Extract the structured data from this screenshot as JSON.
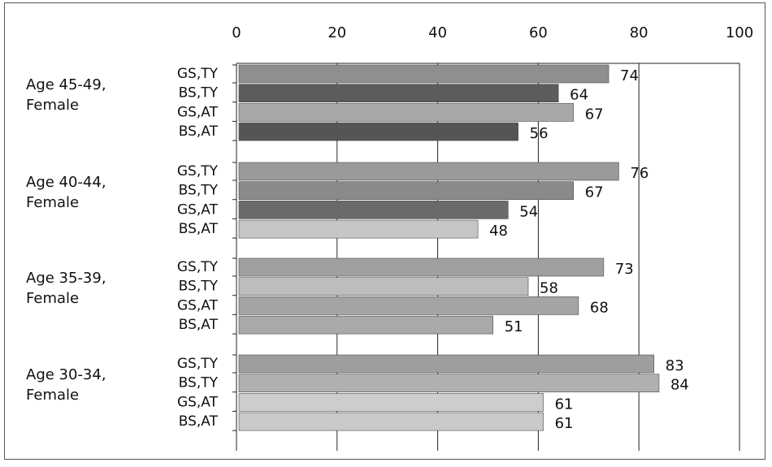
{
  "chart_data": {
    "type": "bar",
    "orientation": "horizontal",
    "title": "",
    "xlabel": "",
    "ylabel": "",
    "xlim": [
      0,
      100
    ],
    "x_ticks": [
      0,
      20,
      40,
      60,
      80,
      100
    ],
    "x_axis_position": "top",
    "grid": true,
    "legend": "none",
    "groups": [
      {
        "label_line1": "Age 45-49,",
        "label_line2": "Female",
        "bars": [
          {
            "category": "GS,TY",
            "value": 74,
            "color": "#8f8f8f"
          },
          {
            "category": "BS,TY",
            "value": 64,
            "color": "#5c5c5c"
          },
          {
            "category": "GS,AT",
            "value": 67,
            "color": "#a8a8a8"
          },
          {
            "category": "BS,AT",
            "value": 56,
            "color": "#555555"
          }
        ]
      },
      {
        "label_line1": "Age 40-44,",
        "label_line2": "Female",
        "bars": [
          {
            "category": "GS,TY",
            "value": 76,
            "color": "#9a9a9a"
          },
          {
            "category": "BS,TY",
            "value": 67,
            "color": "#8a8a8a"
          },
          {
            "category": "GS,AT",
            "value": 54,
            "color": "#6a6a6a"
          },
          {
            "category": "BS,AT",
            "value": 48,
            "color": "#c6c6c6"
          }
        ]
      },
      {
        "label_line1": "Age 35-39,",
        "label_line2": "Female",
        "bars": [
          {
            "category": "GS,TY",
            "value": 73,
            "color": "#a0a0a0"
          },
          {
            "category": "BS,TY",
            "value": 58,
            "color": "#bdbdbd"
          },
          {
            "category": "GS,AT",
            "value": 68,
            "color": "#a4a4a4"
          },
          {
            "category": "BS,AT",
            "value": 51,
            "color": "#a9a9a9"
          }
        ]
      },
      {
        "label_line1": "Age 30-34,",
        "label_line2": "Female",
        "bars": [
          {
            "category": "GS,TY",
            "value": 83,
            "color": "#9e9e9e"
          },
          {
            "category": "BS,TY",
            "value": 84,
            "color": "#b0b0b0"
          },
          {
            "category": "GS,AT",
            "value": 61,
            "color": "#cdcdcd"
          },
          {
            "category": "BS,AT",
            "value": 61,
            "color": "#c9c9c9"
          }
        ]
      }
    ]
  }
}
